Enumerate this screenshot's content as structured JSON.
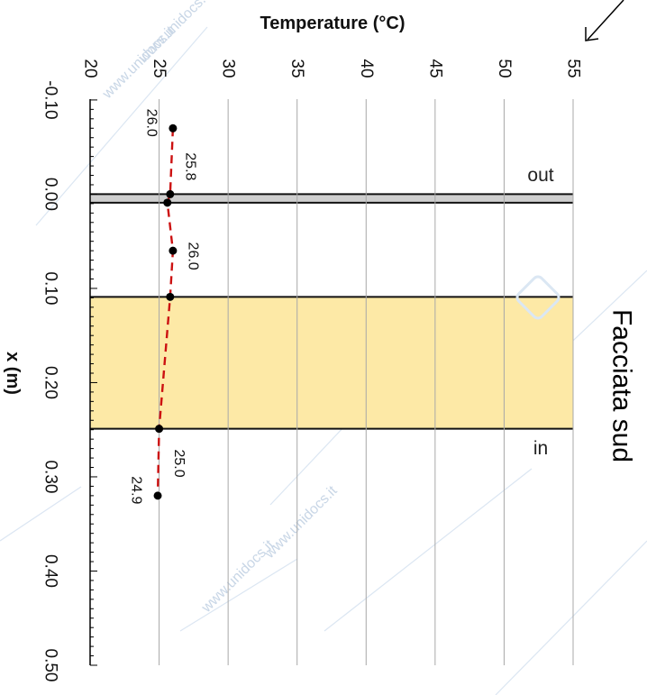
{
  "chart_data": {
    "type": "line",
    "title": "Facciata sud",
    "xlabel": "x (m)",
    "ylabel": "Temperature (°C)",
    "xlim": [
      -0.12,
      0.5
    ],
    "ylim": [
      20,
      55
    ],
    "x_ticks": [
      "-0.10",
      "0.00",
      "0.10",
      "0.20",
      "0.30",
      "0.40",
      "0.50"
    ],
    "y_ticks": [
      "20",
      "25",
      "30",
      "35",
      "40",
      "45",
      "50",
      "55"
    ],
    "grid": true,
    "regions": [
      {
        "name": "thin-layer",
        "x_start": 0.0,
        "x_end": 0.009,
        "color": "#cfcfcf"
      },
      {
        "name": "insulation-layer",
        "x_start": 0.109,
        "x_end": 0.249,
        "color": "#fde9a6"
      }
    ],
    "region_labels": [
      {
        "text": "out",
        "x": -0.02
      },
      {
        "text": "in",
        "x": 0.27
      }
    ],
    "series": [
      {
        "line_color": "#cc1111",
        "points": [
          {
            "x": -0.07,
            "y": 26.0
          },
          {
            "x": 0.0,
            "y": 25.8
          },
          {
            "x": 0.009,
            "y": 25.6
          },
          {
            "x": 0.06,
            "y": 26.0
          },
          {
            "x": 0.109,
            "y": 25.8
          },
          {
            "x": 0.249,
            "y": 25.0
          },
          {
            "x": 0.32,
            "y": 24.9
          }
        ],
        "point_labels": [
          {
            "text": "26.0",
            "x": -0.07,
            "y": 26.0,
            "side": "left"
          },
          {
            "text": "25.8",
            "x": -0.035,
            "y": 25.8,
            "side": "right"
          },
          {
            "text": "26.0",
            "x": 0.06,
            "y": 26.0,
            "side": "right"
          },
          {
            "text": "25.0",
            "x": 0.28,
            "y": 25.0,
            "side": "right"
          },
          {
            "text": "24.9",
            "x": 0.32,
            "y": 24.9,
            "side": "left"
          }
        ]
      }
    ]
  },
  "watermark": "www.unidocs.it"
}
